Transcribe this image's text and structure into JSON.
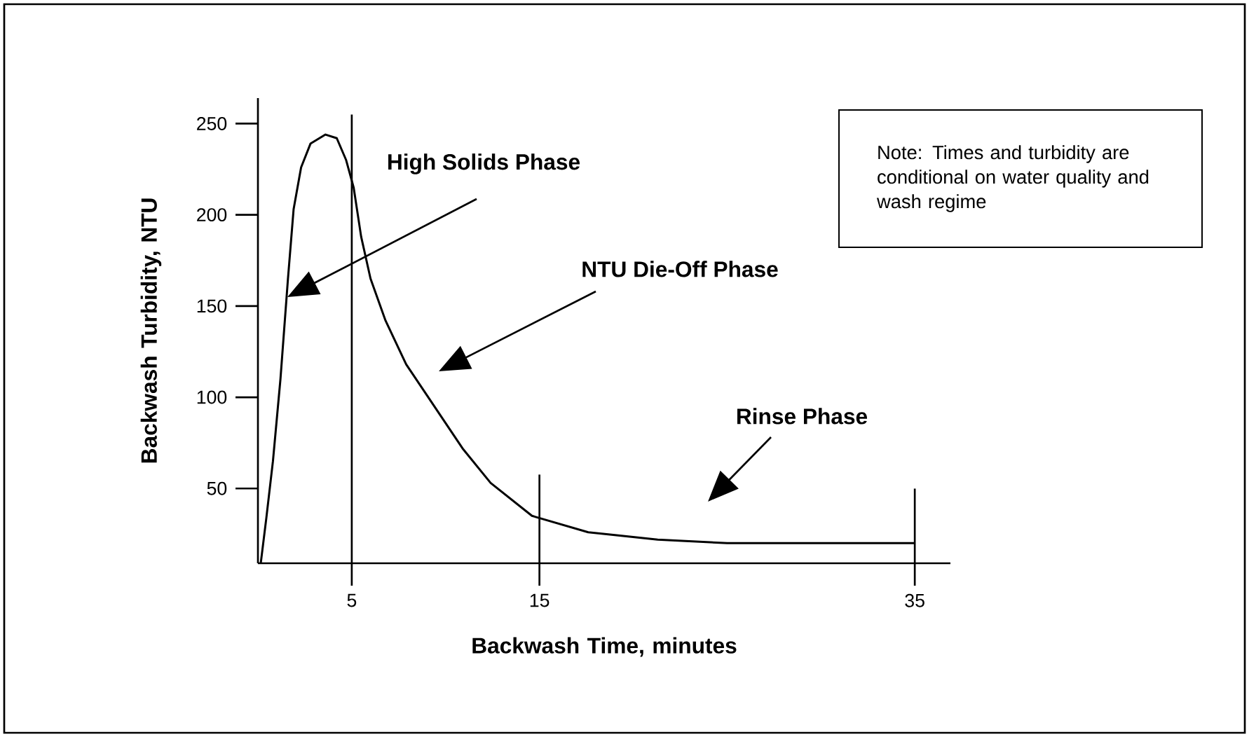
{
  "chart_data": {
    "type": "line",
    "xlabel": "Backwash Time, minutes",
    "ylabel": "Backwash Turbidity, NTU",
    "series": [
      {
        "color": "#000000",
        "x": [
          0.15,
          0.45,
          0.8,
          1.2,
          1.6,
          1.9,
          2.3,
          2.8,
          3.6,
          4.2,
          4.7,
          5.1,
          5.5,
          6.0,
          6.8,
          7.9,
          9.4,
          10.9,
          12.4,
          14.6,
          17.6,
          21.3,
          25,
          35
        ],
        "values": [
          9,
          34,
          65,
          110,
          165,
          203,
          226,
          239,
          244,
          242,
          230,
          215,
          188,
          165,
          142,
          118,
          95,
          72,
          53,
          35,
          26,
          22,
          20,
          20
        ]
      }
    ],
    "ref_lines": [
      {
        "axis": "x",
        "value": 5
      },
      {
        "axis": "x",
        "value": 15
      },
      {
        "axis": "x",
        "value": 35
      }
    ],
    "xlim": [
      0,
      36.9
    ],
    "xticks": [
      5,
      15,
      35
    ],
    "ylim": [
      9,
      264
    ],
    "yticks": [
      50,
      100,
      150,
      200,
      250
    ],
    "annotations": [
      "High Solids Phase",
      "NTU Die-Off Phase",
      "Rinse Phase",
      "Note: Times and turbidity are conditional on water quality and wash regime"
    ],
    "grid": false,
    "marker": "none",
    "line_style": "solid"
  }
}
